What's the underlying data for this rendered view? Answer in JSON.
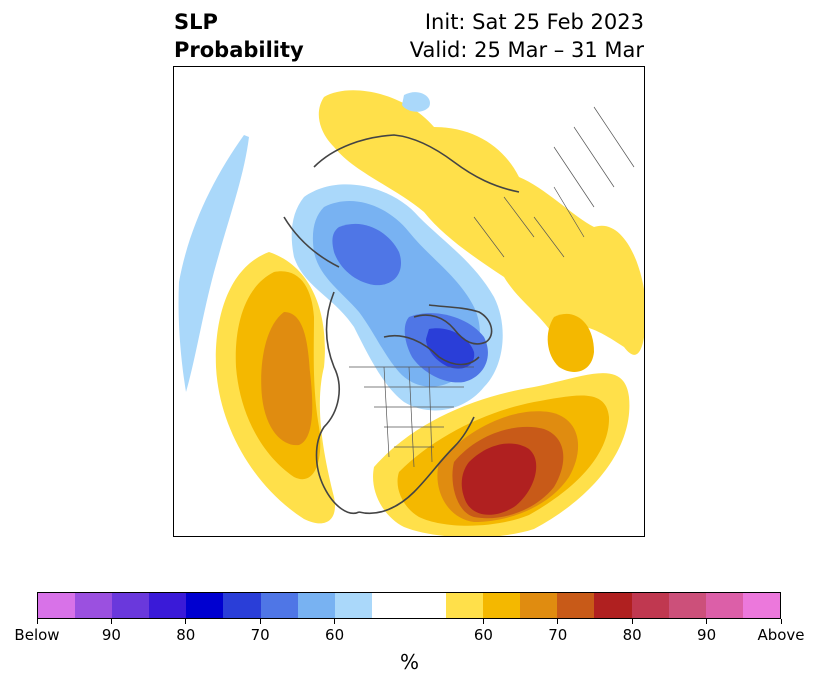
{
  "title": {
    "left_line1": "SLP",
    "left_line2": "Probability",
    "right_line1": "Init: Sat 25 Feb 2023",
    "right_line2": "Valid: 25 Mar – 31 Mar"
  },
  "colorbar": {
    "colors": [
      "#d872e8",
      "#9b50e0",
      "#6a38dc",
      "#3a1ad8",
      "#0000d0",
      "#2a3ed8",
      "#4f76e6",
      "#78b2f2",
      "#aad8fa",
      "#ffffff",
      "#ffffff",
      "#ffe04a",
      "#f4b800",
      "#e08c10",
      "#c85a18",
      "#b02020",
      "#c03850",
      "#cc507a",
      "#dc5fa8",
      "#ec78dc"
    ],
    "tick_labels": [
      "Below",
      "90",
      "80",
      "70",
      "60",
      "60",
      "70",
      "80",
      "90",
      "Above"
    ],
    "unit": "%"
  },
  "map_colors": {
    "yellow": "#ffe04a",
    "gold": "#f4b800",
    "orange": "#e08c10",
    "darkorange": "#c85a18",
    "red": "#b02020",
    "lightblue": "#aad8fa",
    "midblue": "#78b2f2",
    "blue": "#4f76e6",
    "darkblue": "#2a3ed8"
  }
}
